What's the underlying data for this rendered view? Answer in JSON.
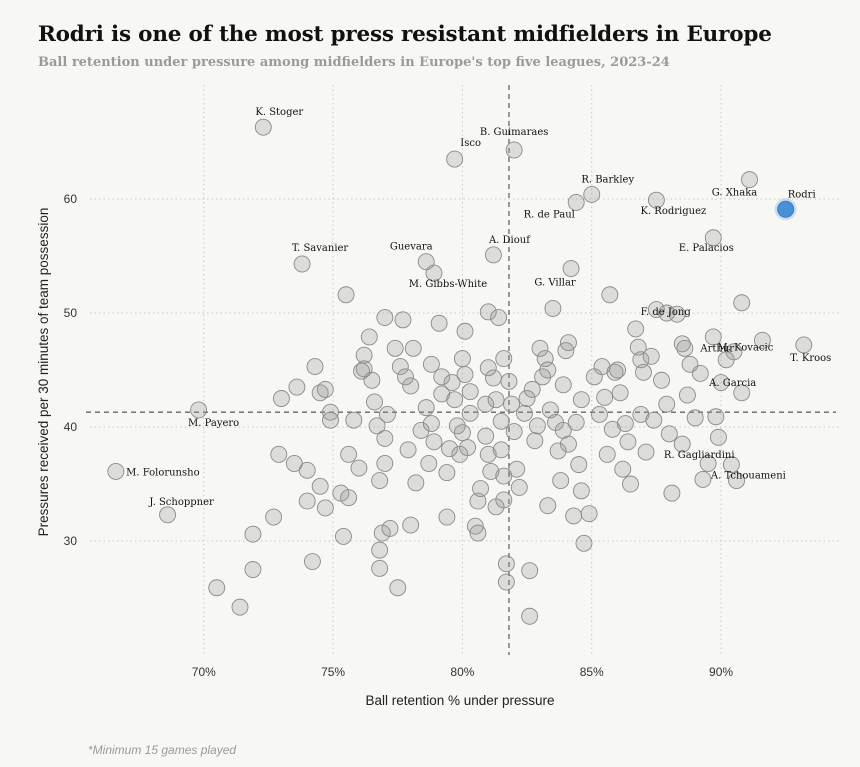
{
  "chart_data": {
    "type": "scatter",
    "title": "Rodri is one of the most press resistant midfielders in Europe",
    "subtitle": "Ball retention under pressure among midfielders in Europe's top five leagues, 2023-24",
    "xlabel": "Ball retention % under pressure",
    "ylabel": "Pressures received per 30 minutes of team possession",
    "footnote": "*Minimum 15 games played",
    "xlim": [
      65.6,
      94.6
    ],
    "ylim": [
      20.0,
      70.0
    ],
    "xticks": [
      70,
      75,
      80,
      85,
      90
    ],
    "xtick_labels": [
      "70%",
      "75%",
      "80%",
      "85%",
      "90%"
    ],
    "yticks": [
      30,
      40,
      50,
      60
    ],
    "ytick_labels": [
      "30",
      "40",
      "50",
      "60"
    ],
    "grid": true,
    "reference_lines": {
      "x": 81.8,
      "y": 41.3
    },
    "highlight_color": "#4a90d9",
    "labeled_points": [
      {
        "name": "K. Stoger",
        "x": 72.3,
        "y": 66.3,
        "highlight": false
      },
      {
        "name": "B. Guimaraes",
        "x": 82.0,
        "y": 64.3,
        "highlight": false
      },
      {
        "name": "Isco",
        "x": 79.7,
        "y": 63.5,
        "highlight": false
      },
      {
        "name": "R. Barkley",
        "x": 85.0,
        "y": 60.4,
        "highlight": false
      },
      {
        "name": "G. Xhaka",
        "x": 91.1,
        "y": 61.7,
        "highlight": false
      },
      {
        "name": "R. de Paul",
        "x": 84.4,
        "y": 59.7,
        "highlight": false
      },
      {
        "name": "K. Rodriguez",
        "x": 87.5,
        "y": 59.9,
        "highlight": false
      },
      {
        "name": "Rodri",
        "x": 92.5,
        "y": 59.1,
        "highlight": true
      },
      {
        "name": "E. Palacios",
        "x": 89.7,
        "y": 56.6,
        "highlight": false
      },
      {
        "name": "T. Savanier",
        "x": 73.8,
        "y": 54.3,
        "highlight": false
      },
      {
        "name": "Guevara",
        "x": 78.6,
        "y": 54.5,
        "highlight": false
      },
      {
        "name": "A. Diouf",
        "x": 81.2,
        "y": 55.1,
        "highlight": false
      },
      {
        "name": "M. Gibbs-White",
        "x": 78.9,
        "y": 53.5,
        "highlight": false
      },
      {
        "name": "G. Villar",
        "x": 84.2,
        "y": 53.9,
        "highlight": false
      },
      {
        "name": "F. de Jong",
        "x": 87.9,
        "y": 50.0,
        "highlight": false
      },
      {
        "name": "M. Kovacic",
        "x": 91.6,
        "y": 47.6,
        "highlight": false
      },
      {
        "name": "T. Kroos",
        "x": 93.2,
        "y": 47.2,
        "highlight": false
      },
      {
        "name": "Arthur",
        "x": 90.2,
        "y": 45.9,
        "highlight": false
      },
      {
        "name": "A. Garcia",
        "x": 90.8,
        "y": 43.0,
        "highlight": false
      },
      {
        "name": "M. Payero",
        "x": 69.8,
        "y": 41.5,
        "highlight": false
      },
      {
        "name": "R. Gagliardini",
        "x": 88.5,
        "y": 38.5,
        "highlight": false
      },
      {
        "name": "A. Tchouameni",
        "x": 90.4,
        "y": 36.7,
        "highlight": false
      },
      {
        "name": "M. Folorunsho",
        "x": 66.6,
        "y": 36.1,
        "highlight": false
      },
      {
        "name": "J. Schoppner",
        "x": 68.6,
        "y": 32.3,
        "highlight": false
      }
    ],
    "other_points": [
      [
        70.5,
        25.9
      ],
      [
        71.4,
        24.2
      ],
      [
        71.9,
        27.5
      ],
      [
        71.9,
        30.6
      ],
      [
        72.7,
        32.1
      ],
      [
        72.9,
        37.6
      ],
      [
        73.0,
        42.5
      ],
      [
        73.5,
        36.8
      ],
      [
        73.6,
        43.5
      ],
      [
        74.0,
        36.2
      ],
      [
        74.0,
        33.5
      ],
      [
        74.2,
        28.2
      ],
      [
        74.3,
        45.3
      ],
      [
        74.5,
        34.8
      ],
      [
        74.5,
        43.0
      ],
      [
        74.7,
        43.3
      ],
      [
        74.7,
        32.9
      ],
      [
        74.9,
        41.3
      ],
      [
        74.9,
        40.6
      ],
      [
        75.3,
        34.2
      ],
      [
        75.4,
        30.4
      ],
      [
        75.5,
        51.6
      ],
      [
        75.6,
        37.6
      ],
      [
        75.6,
        33.8
      ],
      [
        75.8,
        40.6
      ],
      [
        76.0,
        36.4
      ],
      [
        76.1,
        44.9
      ],
      [
        76.2,
        46.3
      ],
      [
        76.2,
        45.1
      ],
      [
        76.4,
        47.9
      ],
      [
        76.5,
        44.1
      ],
      [
        76.6,
        42.2
      ],
      [
        76.7,
        40.1
      ],
      [
        76.8,
        35.3
      ],
      [
        76.8,
        29.2
      ],
      [
        76.8,
        27.6
      ],
      [
        76.9,
        30.7
      ],
      [
        77.0,
        49.6
      ],
      [
        77.0,
        39.0
      ],
      [
        77.0,
        36.8
      ],
      [
        77.1,
        41.1
      ],
      [
        77.2,
        31.1
      ],
      [
        77.4,
        46.9
      ],
      [
        77.5,
        25.9
      ],
      [
        77.6,
        45.3
      ],
      [
        77.7,
        49.4
      ],
      [
        77.8,
        44.4
      ],
      [
        77.9,
        38.0
      ],
      [
        78.0,
        43.6
      ],
      [
        78.0,
        31.4
      ],
      [
        78.1,
        46.9
      ],
      [
        78.2,
        35.1
      ],
      [
        78.4,
        39.7
      ],
      [
        78.6,
        41.7
      ],
      [
        78.7,
        36.8
      ],
      [
        78.8,
        45.5
      ],
      [
        78.8,
        40.3
      ],
      [
        78.9,
        38.7
      ],
      [
        79.1,
        49.1
      ],
      [
        79.2,
        44.4
      ],
      [
        79.2,
        42.9
      ],
      [
        79.4,
        36.0
      ],
      [
        79.4,
        32.1
      ],
      [
        79.5,
        38.1
      ],
      [
        79.6,
        43.9
      ],
      [
        79.7,
        42.4
      ],
      [
        79.8,
        40.1
      ],
      [
        79.9,
        37.6
      ],
      [
        80.0,
        46.0
      ],
      [
        80.0,
        39.5
      ],
      [
        80.1,
        48.4
      ],
      [
        80.1,
        44.6
      ],
      [
        80.2,
        38.2
      ],
      [
        80.3,
        43.1
      ],
      [
        80.3,
        41.2
      ],
      [
        80.5,
        31.3
      ],
      [
        80.6,
        33.5
      ],
      [
        80.6,
        30.7
      ],
      [
        80.7,
        34.6
      ],
      [
        80.9,
        42.0
      ],
      [
        80.9,
        39.2
      ],
      [
        81.0,
        50.1
      ],
      [
        81.0,
        45.2
      ],
      [
        81.0,
        37.6
      ],
      [
        81.1,
        36.1
      ],
      [
        81.2,
        44.3
      ],
      [
        81.3,
        42.4
      ],
      [
        81.3,
        33.0
      ],
      [
        81.4,
        49.6
      ],
      [
        81.5,
        40.5
      ],
      [
        81.5,
        38.0
      ],
      [
        81.6,
        46.0
      ],
      [
        81.6,
        35.7
      ],
      [
        81.6,
        33.6
      ],
      [
        81.7,
        28.0
      ],
      [
        81.7,
        26.4
      ],
      [
        81.8,
        44.0
      ],
      [
        81.9,
        42.0
      ],
      [
        82.0,
        39.6
      ],
      [
        82.1,
        36.3
      ],
      [
        82.2,
        34.7
      ],
      [
        82.4,
        41.2
      ],
      [
        82.5,
        42.5
      ],
      [
        82.6,
        23.4
      ],
      [
        82.6,
        27.4
      ],
      [
        82.7,
        43.3
      ],
      [
        82.8,
        38.8
      ],
      [
        82.9,
        40.1
      ],
      [
        83.0,
        46.9
      ],
      [
        83.1,
        44.4
      ],
      [
        83.2,
        46.0
      ],
      [
        83.3,
        45.0
      ],
      [
        83.3,
        33.1
      ],
      [
        83.4,
        41.5
      ],
      [
        83.5,
        50.4
      ],
      [
        83.6,
        40.4
      ],
      [
        83.7,
        37.9
      ],
      [
        83.8,
        35.3
      ],
      [
        83.9,
        43.7
      ],
      [
        83.9,
        39.7
      ],
      [
        84.0,
        46.7
      ],
      [
        84.1,
        47.4
      ],
      [
        84.1,
        38.5
      ],
      [
        84.3,
        32.2
      ],
      [
        84.4,
        40.4
      ],
      [
        84.5,
        36.7
      ],
      [
        84.6,
        42.4
      ],
      [
        84.6,
        34.4
      ],
      [
        84.7,
        29.8
      ],
      [
        84.9,
        32.4
      ],
      [
        85.1,
        44.4
      ],
      [
        85.3,
        41.1
      ],
      [
        85.4,
        45.3
      ],
      [
        85.5,
        42.6
      ],
      [
        85.6,
        37.6
      ],
      [
        85.7,
        51.6
      ],
      [
        85.8,
        39.8
      ],
      [
        85.9,
        44.8
      ],
      [
        86.0,
        45.0
      ],
      [
        86.1,
        43.0
      ],
      [
        86.2,
        36.3
      ],
      [
        86.3,
        40.3
      ],
      [
        86.4,
        38.7
      ],
      [
        86.5,
        35.0
      ],
      [
        86.7,
        48.6
      ],
      [
        86.8,
        47.0
      ],
      [
        86.9,
        45.9
      ],
      [
        86.9,
        41.1
      ],
      [
        87.0,
        44.8
      ],
      [
        87.1,
        37.8
      ],
      [
        87.3,
        46.2
      ],
      [
        87.4,
        40.6
      ],
      [
        87.5,
        50.3
      ],
      [
        87.7,
        44.1
      ],
      [
        87.9,
        42.0
      ],
      [
        88.0,
        39.4
      ],
      [
        88.1,
        34.2
      ],
      [
        88.3,
        49.9
      ],
      [
        88.5,
        47.3
      ],
      [
        88.6,
        46.9
      ],
      [
        88.7,
        42.8
      ],
      [
        88.8,
        45.5
      ],
      [
        89.0,
        40.8
      ],
      [
        89.2,
        44.7
      ],
      [
        89.3,
        35.4
      ],
      [
        89.5,
        36.8
      ],
      [
        89.7,
        47.9
      ],
      [
        89.8,
        40.9
      ],
      [
        89.9,
        39.1
      ],
      [
        90.0,
        43.9
      ],
      [
        90.8,
        50.9
      ],
      [
        90.5,
        46.6
      ],
      [
        90.6,
        35.3
      ]
    ]
  }
}
